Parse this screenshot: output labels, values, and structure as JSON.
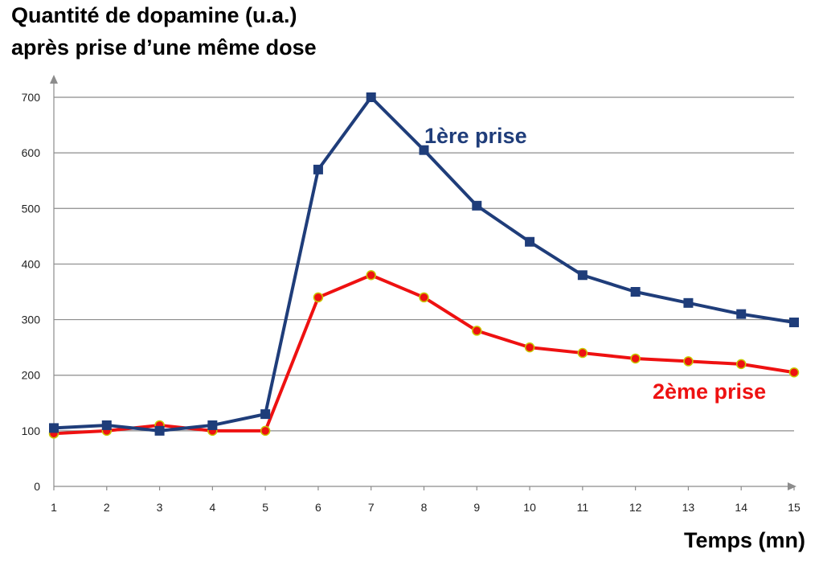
{
  "chart_data": {
    "type": "line",
    "title_line1": "Quantité de dopamine (u.a.)",
    "title_line2": "après prise d’une même dose",
    "xlabel": "Temps (mn)",
    "ylabel": "",
    "x": [
      1,
      2,
      3,
      4,
      5,
      6,
      7,
      8,
      9,
      10,
      11,
      12,
      13,
      14,
      15
    ],
    "ylim": [
      0,
      700
    ],
    "yticks": [
      0,
      100,
      200,
      300,
      400,
      500,
      600,
      700
    ],
    "grid": true,
    "series": [
      {
        "name": "1ère prise",
        "color": "#1f3d7a",
        "marker": "square",
        "values": [
          105,
          110,
          100,
          110,
          130,
          570,
          700,
          605,
          505,
          440,
          380,
          350,
          330,
          310,
          295
        ]
      },
      {
        "name": "2ème prise",
        "color": "#ee1111",
        "marker": "circle",
        "values": [
          95,
          100,
          110,
          100,
          100,
          340,
          380,
          340,
          280,
          250,
          240,
          230,
          225,
          220,
          205
        ]
      }
    ]
  }
}
